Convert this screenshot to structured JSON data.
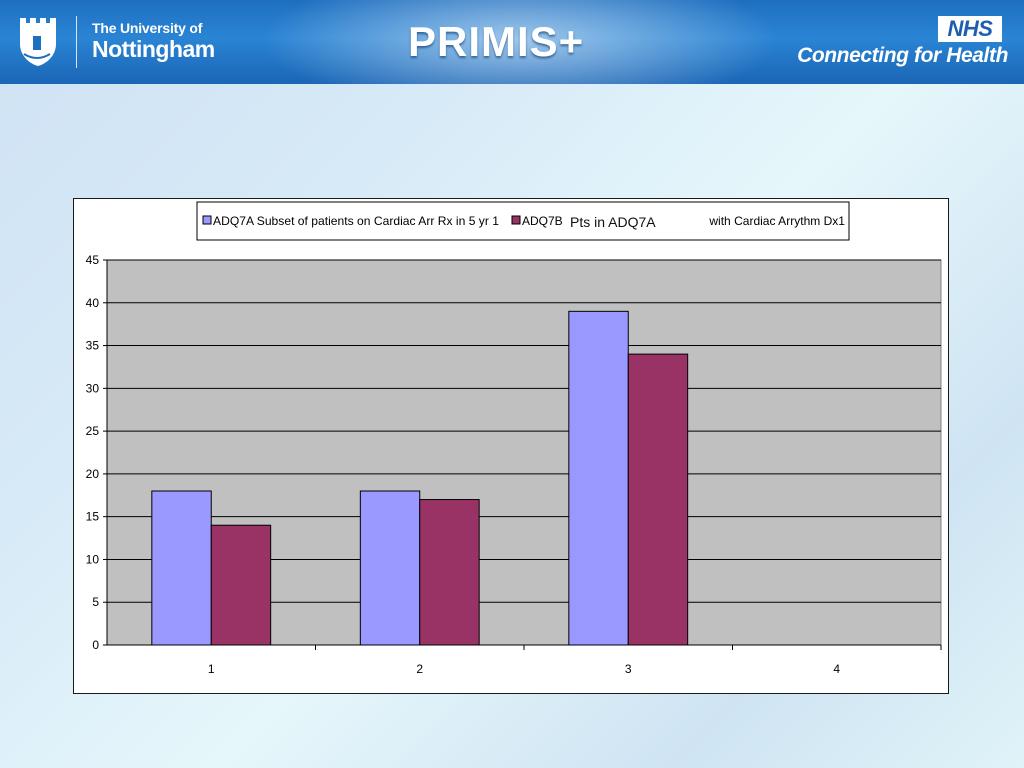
{
  "header": {
    "university_line1": "The University of",
    "university_line2": "Nottingham",
    "program_logo": "PRIMIS+",
    "nhs_badge": "NHS",
    "nhs_tagline": "Connecting for Health"
  },
  "overlay_label": "Pts in ADQ7A",
  "chart_data": {
    "type": "bar",
    "categories": [
      "1",
      "2",
      "3",
      "4"
    ],
    "series": [
      {
        "name": "ADQ7A Subset of patients on Cardiac Arr Rx  in 5 yr  1",
        "values": [
          18,
          18,
          39,
          null
        ],
        "color": "#9999ff"
      },
      {
        "name": "ADQ7B",
        "values": [
          14,
          17,
          34,
          null
        ],
        "color": "#993366"
      }
    ],
    "legend_tail": "r with Cardiac Arrythm Dx1",
    "yticks": [
      "0",
      "5",
      "10",
      "15",
      "20",
      "25",
      "30",
      "35",
      "40",
      "45"
    ],
    "ylim": [
      0,
      45
    ],
    "grid": true,
    "plot_background": "#c0c0c0",
    "legend_position": "top"
  }
}
